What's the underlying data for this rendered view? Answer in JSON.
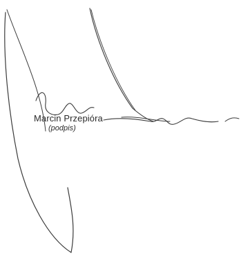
{
  "document": {
    "signer_name": "Marcin Przepióra",
    "signature_caption": "(podpis)",
    "ink_color": "#3a3a3a"
  }
}
